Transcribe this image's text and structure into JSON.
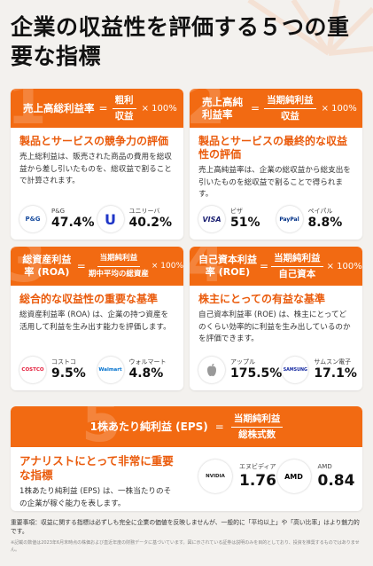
{
  "title": "企業の収益性を評価する５つの重要な指標",
  "cards": [
    {
      "number": "1",
      "metric": "売上高総利益率",
      "equals": "=",
      "numerator": "粗利",
      "denominator": "収益",
      "multiplier": "× 100%",
      "subhead": "製品とサービスの競争力の評価",
      "desc": "売上総利益は、販売された商品の費用を総収益から差し引いたものを、総収益で割ることで計算されます。",
      "examples": [
        {
          "name": "P&G",
          "value": "47.4%",
          "logo_text": "P&G",
          "logo_color": "#1c4fa0"
        },
        {
          "name": "ユニリーバ",
          "value": "40.2%",
          "logo_text": "U",
          "logo_color": "#1f36c7"
        }
      ]
    },
    {
      "number": "2",
      "metric": "売上高純利益率",
      "equals": "=",
      "numerator": "当期純利益",
      "denominator": "収益",
      "multiplier": "× 100%",
      "subhead": "製品とサービスの最終的な収益性の評価",
      "desc": "売上高純益率は、企業の総収益から総支出を引いたものを総収益で割ることで得られます。",
      "examples": [
        {
          "name": "ビザ",
          "value": "51%",
          "logo_text": "VISA",
          "logo_color": "#1a1f71"
        },
        {
          "name": "ペイパル",
          "value": "8.8%",
          "logo_text": "PayPal",
          "logo_color": "#003087"
        }
      ]
    },
    {
      "number": "3",
      "metric": "総資産利益率 (ROA)",
      "equals": "=",
      "numerator": "当期純利益",
      "denominator": "期中平均の総資産",
      "multiplier": "× 100%",
      "subhead": "総合的な収益性の重要な基準",
      "desc": "総資産利益率 (ROA) は、企業の持つ資産を活用して利益を生み出す能力を評価します。",
      "examples": [
        {
          "name": "コストコ",
          "value": "9.5%",
          "logo_text": "COSTCO",
          "logo_color": "#e31837"
        },
        {
          "name": "ウォルマート",
          "value": "4.8%",
          "logo_text": "Walmart",
          "logo_color": "#0071ce"
        }
      ]
    },
    {
      "number": "4",
      "metric": "自己資本利益率 (ROE)",
      "equals": "=",
      "numerator": "当期純利益",
      "denominator": "自己資本",
      "multiplier": "× 100%",
      "subhead": "株主にとっての有益な基準",
      "desc": "自己資本利益率 (ROE) は、株主にとってどのくらい効率的に利益を生み出しているのかを評価できます。",
      "examples": [
        {
          "name": "アップル",
          "value": "175.5%",
          "logo_text": "",
          "logo_color": "#888888"
        },
        {
          "name": "サムスン電子",
          "value": "17.1%",
          "logo_text": "SAMSUNG",
          "logo_color": "#1428a0"
        }
      ]
    },
    {
      "number": "5",
      "metric": "1株あたり純利益 (EPS)",
      "equals": "=",
      "numerator": "当期純利益",
      "denominator": "総株式数",
      "multiplier": "",
      "subhead": "アナリストにとって非常に重要な指標",
      "desc": "1株あたり純利益 (EPS) は、一株当たりのその企業が稼ぐ能力を表します。",
      "examples": [
        {
          "name": "エヌビディア",
          "value": "1.76",
          "logo_text": "NVIDIA",
          "logo_color": "#76b900"
        },
        {
          "name": "AMD",
          "value": "0.84",
          "logo_text": "AMD",
          "logo_color": "#000000"
        }
      ]
    }
  ],
  "note": "重要事項：収益に関する指標は必ずしも完全に企業の価値を反映しませんが、一般的に「平均以上」や「高い比率」はより魅力的です。",
  "note2": "※記載の数値は2023年6月末時点の株価および直近年度の財務データに基づいています。図に示されている証券は説明のみを目的としており、投資を推奨するものではありません。"
}
